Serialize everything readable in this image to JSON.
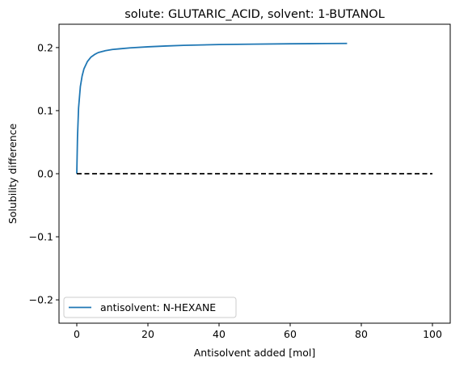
{
  "chart_data": {
    "type": "line",
    "title": "solute: GLUTARIC_ACID, solvent: 1-BUTANOL",
    "xlabel": "Antisolvent added [mol]",
    "ylabel": "Solubility difference",
    "xlim": [
      -5,
      105
    ],
    "ylim": [
      -0.237,
      0.237
    ],
    "xticks": [
      0,
      20,
      40,
      60,
      80,
      100
    ],
    "xtick_labels": [
      "0",
      "20",
      "40",
      "60",
      "80",
      "100"
    ],
    "yticks": [
      -0.2,
      -0.1,
      0.0,
      0.1,
      0.2
    ],
    "ytick_labels": [
      "−0.2",
      "−0.1",
      "0.0",
      "0.1",
      "0.2"
    ],
    "grid": false,
    "legend_position": "lower-left",
    "series": [
      {
        "name": "antisolvent: N-HEXANE",
        "color": "#1f77b4",
        "style": "solid",
        "x": [
          0,
          0.2,
          0.5,
          1,
          1.5,
          2,
          3,
          4,
          5,
          6,
          8,
          10,
          12,
          15,
          20,
          25,
          30,
          40,
          50,
          60,
          70,
          76
        ],
        "y": [
          0.0,
          0.058,
          0.104,
          0.138,
          0.155,
          0.166,
          0.178,
          0.185,
          0.189,
          0.192,
          0.195,
          0.197,
          0.198,
          0.1995,
          0.2012,
          0.2025,
          0.2035,
          0.2048,
          0.2055,
          0.206,
          0.2064,
          0.2066
        ]
      },
      {
        "color": "#000000",
        "style": "dashed",
        "x": [
          0,
          100
        ],
        "y": [
          0,
          0
        ]
      }
    ]
  }
}
